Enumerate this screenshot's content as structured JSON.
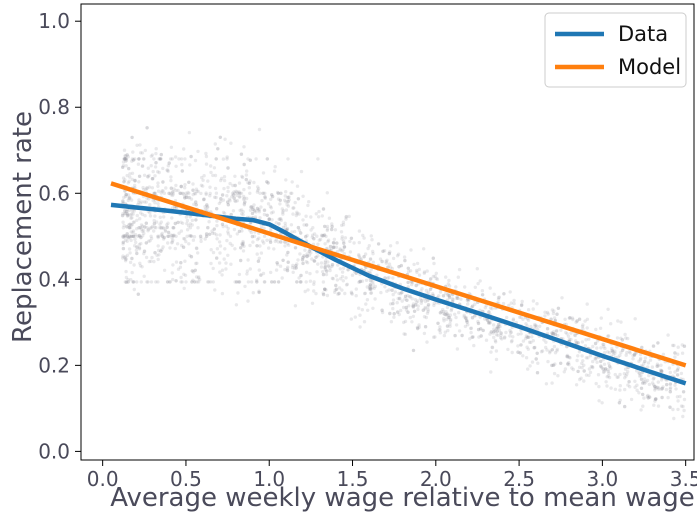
{
  "chart_data": {
    "type": "scatter",
    "title": "",
    "xlabel": "Average weekly wage relative to mean wage",
    "ylabel": "Replacement rate",
    "xlim": [
      -0.13,
      3.55
    ],
    "ylim": [
      -0.02,
      1.04
    ],
    "xticks": [
      0.0,
      0.5,
      1.0,
      1.5,
      2.0,
      2.5,
      3.0,
      3.5
    ],
    "yticks": [
      0.0,
      0.2,
      0.4,
      0.6,
      0.8,
      1.0
    ],
    "xtick_labels": [
      "0.0",
      "0.5",
      "1.0",
      "1.5",
      "2.0",
      "2.5",
      "3.0",
      "3.5"
    ],
    "ytick_labels": [
      "0.0",
      "0.2",
      "0.4",
      "0.6",
      "0.8",
      "1.0"
    ],
    "grid": false,
    "legend_position": "top-right",
    "series": [
      {
        "name": "Data",
        "color": "#1f77b4",
        "x": [
          0.05,
          0.2,
          0.4,
          0.6,
          0.8,
          0.9,
          1.0,
          1.1,
          1.2,
          1.4,
          1.6,
          1.8,
          2.0,
          2.25,
          2.5,
          2.75,
          3.0,
          3.25,
          3.5
        ],
        "y": [
          0.573,
          0.567,
          0.559,
          0.55,
          0.541,
          0.538,
          0.528,
          0.508,
          0.486,
          0.445,
          0.408,
          0.379,
          0.353,
          0.322,
          0.29,
          0.256,
          0.222,
          0.19,
          0.158
        ]
      },
      {
        "name": "Model",
        "color": "#ff7f0e",
        "x": [
          0.05,
          3.5
        ],
        "y": [
          0.623,
          0.2
        ]
      }
    ],
    "scatter_note_color": "#9a9aa2"
  }
}
